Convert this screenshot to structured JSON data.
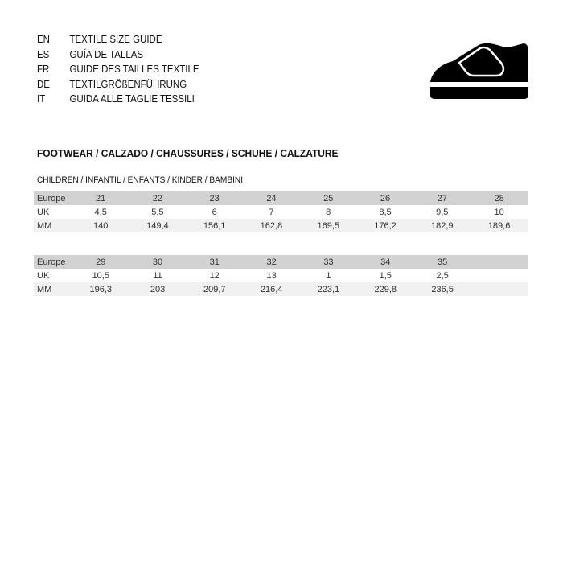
{
  "languages": [
    {
      "code": "EN",
      "title": "TEXTILE SIZE GUIDE"
    },
    {
      "code": "ES",
      "title": "GUÍA DE TALLAS"
    },
    {
      "code": "FR",
      "title": "GUIDE DES TAILLES TEXTILE"
    },
    {
      "code": "DE",
      "title": "TEXTILGRÖßENFÜHRUNG"
    },
    {
      "code": "IT",
      "title": "GUIDA ALLE TAGLIE TESSILI"
    }
  ],
  "icon": "velcro-shoe-icon",
  "section_title": "FOOTWEAR / CALZADO / CHAUSSURES / SCHUHE / CALZATURE",
  "sub_title": "CHILDREN / INFANTIL / ENFANTS / KINDER / BAMBINI",
  "tables": [
    {
      "rows": [
        {
          "label": "Europe",
          "values": [
            "21",
            "22",
            "23",
            "24",
            "25",
            "26",
            "27",
            "28"
          ]
        },
        {
          "label": "UK",
          "values": [
            "4,5",
            "5,5",
            "6",
            "7",
            "8",
            "8,5",
            "9,5",
            "10"
          ]
        },
        {
          "label": "MM",
          "values": [
            "140",
            "149,4",
            "156,1",
            "162,8",
            "169,5",
            "176,2",
            "182,9",
            "189,6"
          ]
        }
      ]
    },
    {
      "rows": [
        {
          "label": "Europe",
          "values": [
            "29",
            "30",
            "31",
            "32",
            "33",
            "34",
            "35",
            ""
          ]
        },
        {
          "label": "UK",
          "values": [
            "10,5",
            "11",
            "12",
            "13",
            "1",
            "1,5",
            "2,5",
            ""
          ]
        },
        {
          "label": "MM",
          "values": [
            "196,3",
            "203",
            "209,7",
            "216,4",
            "223,1",
            "229,8",
            "236,5",
            ""
          ]
        }
      ]
    }
  ]
}
